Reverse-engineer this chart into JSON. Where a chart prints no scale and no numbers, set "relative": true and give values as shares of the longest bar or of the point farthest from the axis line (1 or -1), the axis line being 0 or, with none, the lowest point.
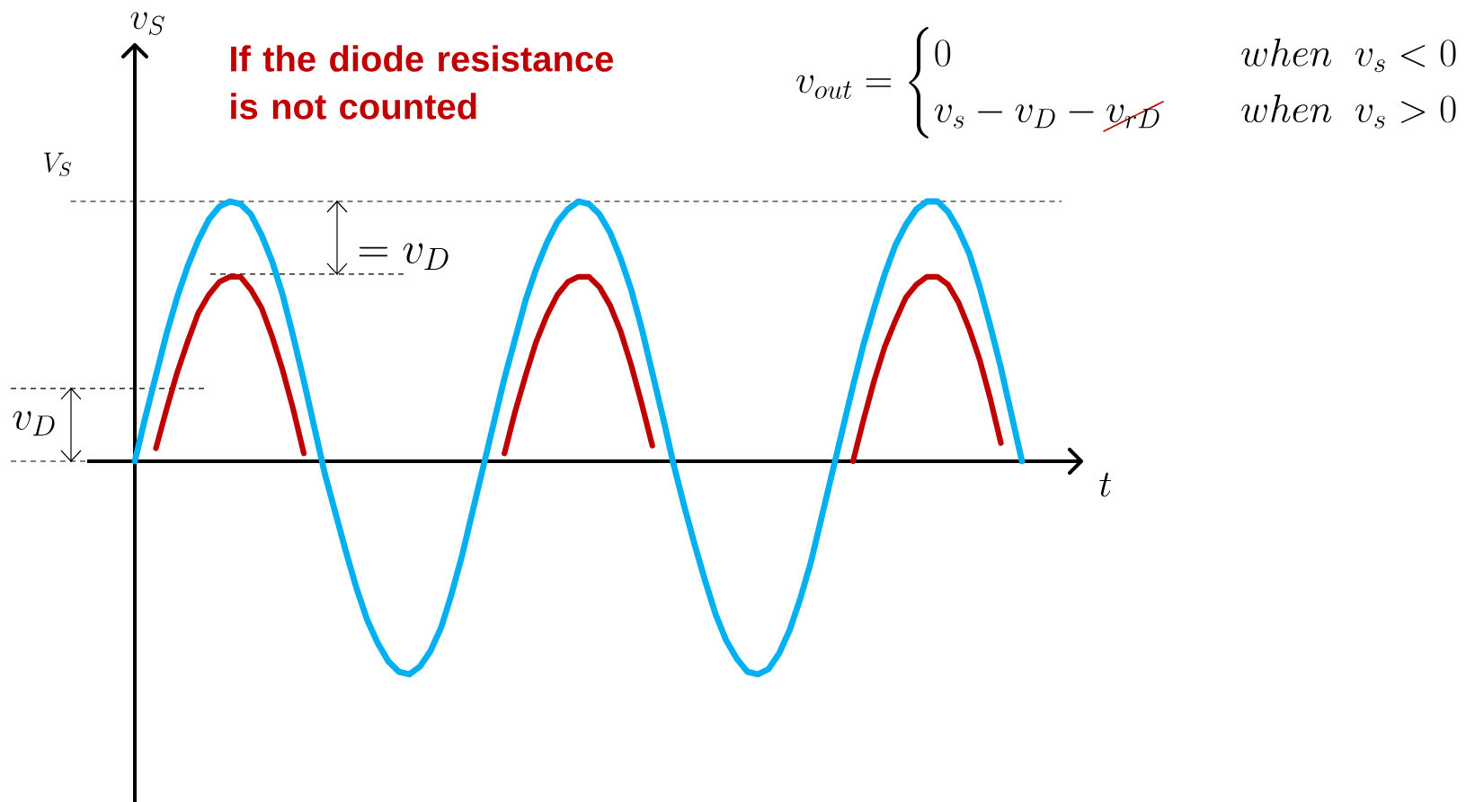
{
  "chart_data": {
    "type": "line",
    "relative": true,
    "title": "If the diode resistance is not counted",
    "xlabel": "t",
    "categories": [
      null,
      null,
      null,
      null,
      null,
      null,
      null,
      null,
      null,
      null,
      null,
      null,
      null,
      null,
      null,
      null,
      null,
      null,
      null,
      null,
      null,
      null,
      null,
      null,
      null,
      null,
      null,
      null,
      null,
      null,
      null,
      null,
      null,
      null,
      null,
      null,
      null,
      null,
      null,
      null,
      null,
      null,
      null,
      null,
      null,
      null,
      null,
      null,
      null,
      null,
      null,
      null,
      null,
      null,
      null,
      null,
      null,
      null,
      null,
      null,
      null,
      null,
      null,
      null,
      null,
      null,
      null,
      null,
      null,
      null,
      null,
      null,
      null,
      null,
      null,
      null,
      null,
      null,
      null,
      null,
      null,
      null,
      null,
      null,
      null
    ],
    "series": [
      {
        "color": "#00b0f0",
        "values": [
          0,
          0.17,
          0.33,
          0.49,
          0.63,
          0.75,
          0.85,
          0.93,
          0.98,
          1,
          0.99,
          0.95,
          0.87,
          0.77,
          0.64,
          0.48,
          0.31,
          0.13,
          -0.05,
          -0.2,
          -0.35,
          -0.49,
          -0.61,
          -0.7,
          -0.77,
          -0.81,
          -0.82,
          -0.79,
          -0.73,
          -0.64,
          -0.51,
          -0.36,
          -0.19,
          -0.02,
          0.15,
          0.32,
          0.47,
          0.62,
          0.74,
          0.84,
          0.92,
          0.97,
          1,
          0.99,
          0.95,
          0.88,
          0.78,
          0.66,
          0.51,
          0.34,
          0.17,
          -0.01,
          -0.17,
          -0.32,
          -0.46,
          -0.59,
          -0.69,
          -0.76,
          -0.81,
          -0.82,
          -0.8,
          -0.74,
          -0.65,
          -0.53,
          -0.39,
          -0.22,
          -0.05,
          0.12,
          0.29,
          0.45,
          0.59,
          0.72,
          0.83,
          0.91,
          0.97,
          1,
          1,
          0.96,
          0.89,
          0.8,
          0.67,
          0.52,
          0.36,
          0.18,
          0
        ]
      },
      {
        "color": "#c00000",
        "values": [
          null,
          null,
          0.05,
          0.2,
          0.34,
          0.46,
          0.57,
          0.64,
          0.69,
          0.71,
          0.71,
          0.66,
          0.59,
          0.48,
          0.35,
          0.2,
          0.03,
          null,
          null,
          null,
          null,
          null,
          null,
          null,
          null,
          null,
          null,
          null,
          null,
          null,
          null,
          null,
          null,
          null,
          null,
          0.03,
          0.19,
          0.33,
          0.46,
          0.56,
          0.64,
          0.69,
          0.71,
          0.71,
          0.67,
          0.6,
          0.5,
          0.37,
          0.22,
          0.06,
          null,
          null,
          null,
          null,
          null,
          null,
          null,
          null,
          null,
          null,
          null,
          null,
          null,
          null,
          null,
          null,
          null,
          null,
          0,
          0.16,
          0.31,
          0.44,
          0.54,
          0.63,
          0.68,
          0.71,
          0.71,
          0.68,
          0.61,
          0.51,
          0.39,
          0.24,
          0.07,
          null,
          null
        ]
      }
    ],
    "ref_lines": [
      {
        "axis": "y",
        "value": 1,
        "label": "V_S",
        "line_style": "dashed"
      },
      {
        "axis": "y",
        "value": 0.72,
        "line_style": "dashed"
      },
      {
        "axis": "y",
        "value": 0.28,
        "line_style": "dashed"
      }
    ],
    "annotations": [
      "v_S",
      "v_D",
      "= v_D",
      "v_{out} = \\begin{cases} 0 & \\quad when\\ \\ v_s < 0 \\\\ v_s - v_D - \\cancel{v_{rD}} & \\quad when\\ \\ v_s > 0 \\end{cases}"
    ]
  }
}
